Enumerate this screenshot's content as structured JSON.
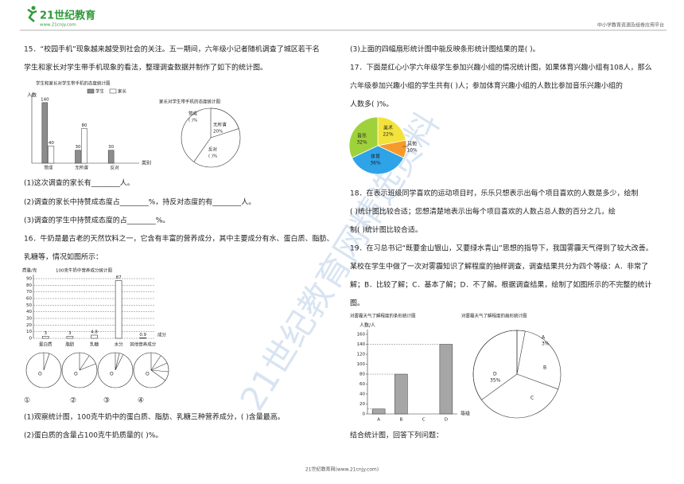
{
  "header": {
    "logo": "21世纪教育",
    "logo_sub": "www.21cnjy.com",
    "right": "中小学教育资源及组卷应用平台"
  },
  "watermark": "21世纪教育网精选资料",
  "q15": {
    "lines": [
      "15．“校园手机”现象越来越受到社会的关注。五一期间，六年级小记者随机调查了城区若干名",
      "学生和家长对学生带手机现象的看法，整理调查数据并制作了如下的统计图。"
    ],
    "parts": [
      "(1)这次调查的家长有________人。",
      "(2)调查的家长中持赞成态度占________%，持反对态度的有________人。",
      "(3)调查的学生中持赞成态度的占________%。"
    ],
    "bar_chart": {
      "type": "bar",
      "title": "学生和家长对学生带手机的态度统计图",
      "y_label": "人数",
      "x_label": "类别",
      "categories": [
        "赞成",
        "无所谓",
        "反对"
      ],
      "ylim": [
        0,
        160
      ],
      "series": [
        {
          "name": "学生",
          "color": "#8c8c8c",
          "values": [
            140,
            30,
            30
          ]
        },
        {
          "name": "家长",
          "color": "#ffffff",
          "values": [
            40,
            80,
            null
          ]
        }
      ]
    },
    "pie_chart": {
      "type": "pie",
      "title": "家长对学生带手机的态度统计图",
      "categories": [
        "赞成",
        "无所谓",
        "反对"
      ],
      "values": [
        null,
        20,
        null
      ],
      "value_labels": [
        "(    )%",
        "20%",
        "(    )%"
      ]
    }
  },
  "q16": {
    "lines": [
      "16．牛奶是最古老的天然饮料之一，它含有丰富的营养成分，其中主要成分有水、蛋白质、脂肪、",
      "乳糖等，情况如图所示："
    ],
    "chart": {
      "type": "bar",
      "title": "100克牛奶中营养成分统计图",
      "y_label": "质量/克",
      "x_label": "成分",
      "categories": [
        "蛋白质",
        "脂肪",
        "乳糖",
        "水分",
        "其他营养成分"
      ],
      "values": [
        3,
        3,
        4.8,
        87,
        0.9
      ],
      "ylim": [
        0,
        90
      ],
      "yticks": [
        0,
        10,
        20,
        30,
        40,
        50,
        60,
        70,
        80,
        90
      ],
      "grid": true
    },
    "pie_center": "O",
    "pie_labels": [
      "①",
      "②",
      "③",
      "④"
    ],
    "parts": [
      "(1)观察统计图，100克牛奶中的蛋白质、脂肪、乳糖三种营养成分，(            )含量最高。",
      "(2)蛋白质的含量占100克牛奶质量的(            )%。",
      "(3)上面的四幅扇形统计图中能反映条形统计图结果的是(            )。"
    ]
  },
  "q17": {
    "lines": [
      "17．下面是红心小学六年级学生参加兴趣小组的情况统计图，如果体育兴趣小组有108人，那么",
      "六年级参加兴趣小组的学生共有(            )人；参加体育兴趣小组的人数比参加音乐兴趣小组的",
      "人数多(            )%。"
    ],
    "pie": {
      "type": "pie",
      "categories": [
        "美术",
        "其他",
        "体育",
        "音乐"
      ],
      "values": [
        22,
        10,
        36,
        32
      ],
      "value_labels": [
        "22%",
        "10%",
        "36%",
        "32%"
      ],
      "colors": [
        "#f2e33a",
        "#f59a2b",
        "#2ea3e8",
        "#9fd13b"
      ]
    }
  },
  "q18": {
    "lines": [
      "18．在表示班级同学喜欢的运动项目时，乐乐只想表示出每个项目喜欢的人数是多少，绘制",
      "(            )统计图比较合适；您想清楚地表示出每个项目喜欢的人数占总人数的百分之几，绘",
      "制(            )统计图比较合适。"
    ]
  },
  "q19": {
    "lines": [
      "19．在习总书记“既要金山银山，又要绿水青山”思想的指导下，我国雾霾天气得到了较大改善。",
      "某校在学生中做了一次对雾霾知识了解程度的抽样调查，调查结果共分为四个等级：A．非常了",
      "解；B．比较了解；C．基本了解；D．不了解。根据调查结果，绘制了如图所示的不完整的统计",
      "图。"
    ],
    "bar_chart": {
      "type": "bar",
      "title": "对雾霾天气了解程度的条形统计图",
      "y_label": "人数/人",
      "x_label": "等级",
      "categories": [
        "A",
        "B",
        "C",
        "D"
      ],
      "values": [
        10,
        80,
        null,
        140
      ],
      "ylim": [
        0,
        160
      ],
      "yticks": [
        0,
        20,
        40,
        60,
        80,
        100,
        120,
        140,
        160
      ]
    },
    "pie_chart": {
      "type": "pie",
      "title": "对雾霾天气了解程度的扇形统计图",
      "categories": [
        "A",
        "B",
        "C",
        "D"
      ],
      "values": [
        3,
        null,
        null,
        35
      ],
      "value_labels": [
        "3%",
        null,
        null,
        "35%"
      ]
    },
    "follow": "结合统计图，回答下列问题："
  },
  "footer": "21世纪教育网(www.21cnjy.com)"
}
